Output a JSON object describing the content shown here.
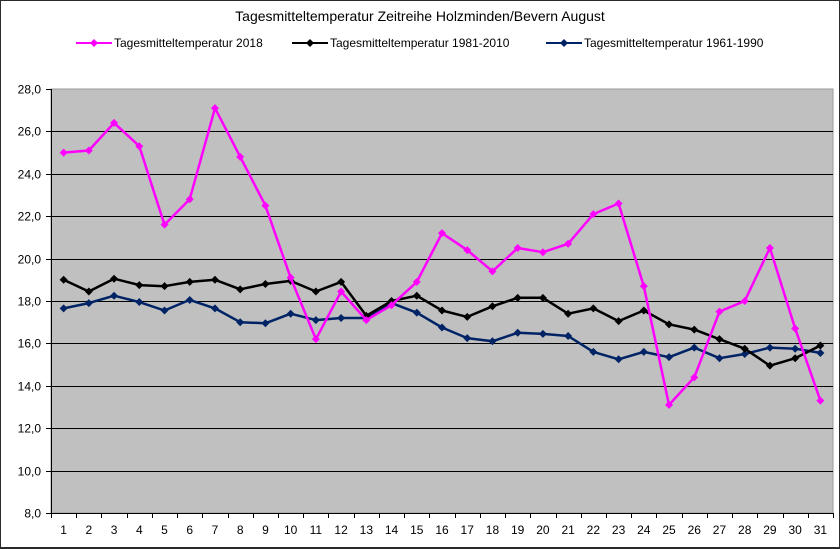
{
  "chart_data": {
    "type": "line",
    "title": "Tagesmitteltemperatur Zeitreihe Holzminden/Bevern August",
    "xlabel": "",
    "ylabel": "",
    "ylim": [
      8.0,
      28.0
    ],
    "ytick_step": 2.0,
    "yticks": [
      "8,0",
      "10,0",
      "12,0",
      "14,0",
      "16,0",
      "18,0",
      "20,0",
      "22,0",
      "24,0",
      "26,0",
      "28,0"
    ],
    "grid": true,
    "legend_position": "top",
    "categories": [
      1,
      2,
      3,
      4,
      5,
      6,
      7,
      8,
      9,
      10,
      11,
      12,
      13,
      14,
      15,
      16,
      17,
      18,
      19,
      20,
      21,
      22,
      23,
      24,
      25,
      26,
      27,
      28,
      29,
      30,
      31
    ],
    "series": [
      {
        "name": "Tagesmitteltemperatur 2018",
        "color": "#ff00ff",
        "values": [
          25.0,
          25.1,
          26.4,
          25.3,
          21.6,
          22.8,
          27.1,
          24.8,
          22.5,
          19.1,
          16.2,
          18.45,
          17.1,
          17.8,
          18.9,
          21.2,
          20.4,
          19.4,
          20.5,
          20.3,
          20.7,
          22.1,
          22.6,
          18.7,
          13.1,
          14.4,
          17.5,
          18.0,
          20.5,
          16.7,
          13.3
        ]
      },
      {
        "name": "Tagesmitteltemperatur 1981-2010",
        "color": "#000000",
        "values": [
          19.0,
          18.45,
          19.05,
          18.75,
          18.7,
          18.9,
          19.0,
          18.55,
          18.8,
          18.95,
          18.45,
          18.9,
          17.3,
          18.0,
          18.25,
          17.55,
          17.25,
          17.75,
          18.15,
          18.15,
          17.4,
          17.65,
          17.05,
          17.55,
          16.9,
          16.65,
          16.2,
          15.75,
          14.95,
          15.3,
          15.9
        ]
      },
      {
        "name": "Tagesmitteltemperatur 1961-1990",
        "color": "#002366",
        "values": [
          17.65,
          17.9,
          18.25,
          17.95,
          17.55,
          18.05,
          17.65,
          17.0,
          16.95,
          17.4,
          17.1,
          17.2,
          17.2,
          17.9,
          17.45,
          16.75,
          16.25,
          16.1,
          16.5,
          16.45,
          16.35,
          15.6,
          15.25,
          15.6,
          15.35,
          15.8,
          15.3,
          15.5,
          15.8,
          15.75,
          15.55
        ]
      }
    ]
  },
  "style": {
    "plot_background": "#c0c0c0",
    "gridline_color": "#000000"
  }
}
